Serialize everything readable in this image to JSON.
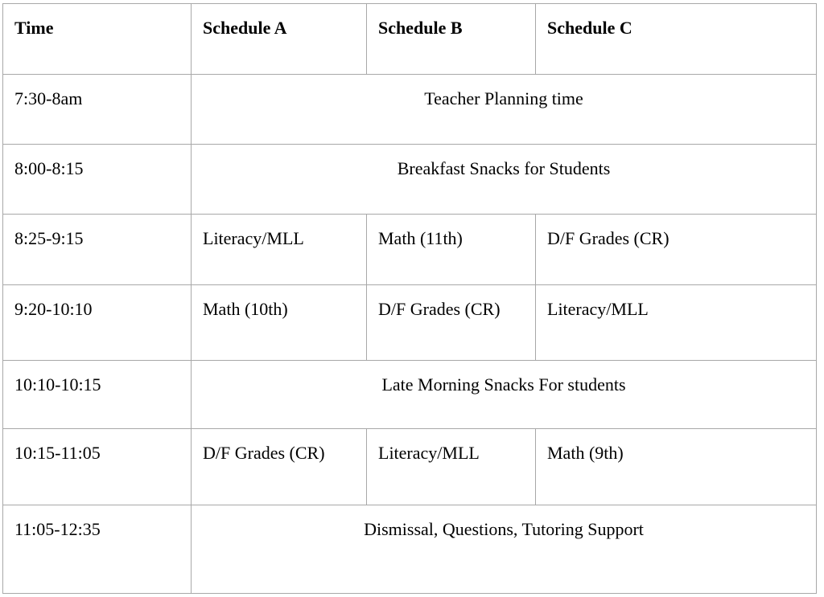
{
  "table": {
    "headers": [
      "Time",
      "Schedule A",
      "Schedule B",
      "Schedule C"
    ],
    "rows": [
      {
        "time": "7:30-8am",
        "span": "Teacher Planning time"
      },
      {
        "time": "8:00-8:15",
        "span": "Breakfast Snacks for Students"
      },
      {
        "time": "8:25-9:15",
        "a": "Literacy/MLL",
        "b": "Math (11th)",
        "c": "D/F Grades (CR)"
      },
      {
        "time": "9:20-10:10",
        "a": "Math (10th)",
        "b": "D/F Grades (CR)",
        "c": "Literacy/MLL"
      },
      {
        "time": "10:10-10:15",
        "span": "Late Morning Snacks For students"
      },
      {
        "time": "10:15-11:05",
        "a": "D/F Grades (CR)",
        "b": "Literacy/MLL",
        "c": "Math (9th)"
      },
      {
        "time": "11:05-12:35",
        "span": "Dismissal, Questions, Tutoring Support"
      }
    ]
  }
}
